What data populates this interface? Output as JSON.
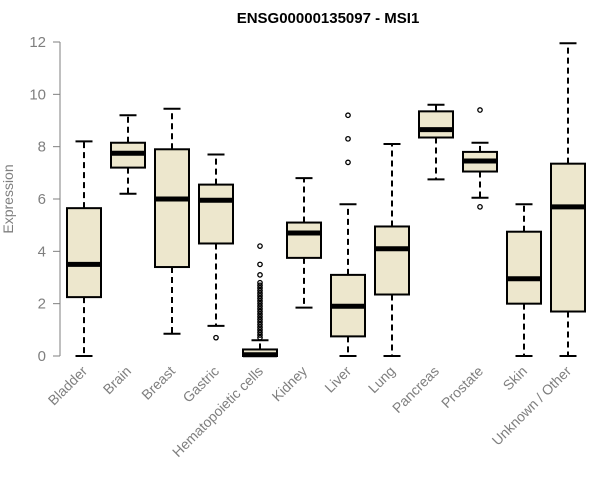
{
  "chart_data": {
    "type": "boxplot",
    "title": "ENSG00000135097 - MSI1",
    "ylabel": "Expression",
    "ylim": [
      0,
      12
    ],
    "yticks": [
      0,
      2,
      4,
      6,
      8,
      10,
      12
    ],
    "grid": false,
    "legend": "none",
    "box_fill": "#ede7cd",
    "box_stroke": "#000000",
    "categories": [
      "Bladder",
      "Brain",
      "Breast",
      "Gastric",
      "Hematopoietic cells",
      "Kidney",
      "Liver",
      "Lung",
      "Pancreas",
      "Prostate",
      "Skin",
      "Unknown / Other"
    ],
    "boxes": [
      {
        "category": "Bladder",
        "whisker_low": 0.0,
        "q1": 2.25,
        "median": 3.5,
        "q3": 5.65,
        "whisker_high": 8.2,
        "outliers": []
      },
      {
        "category": "Brain",
        "whisker_low": 6.2,
        "q1": 7.2,
        "median": 7.75,
        "q3": 8.15,
        "whisker_high": 9.2,
        "outliers": []
      },
      {
        "category": "Breast",
        "whisker_low": 0.85,
        "q1": 3.4,
        "median": 6.0,
        "q3": 7.9,
        "whisker_high": 9.45,
        "outliers": []
      },
      {
        "category": "Gastric",
        "whisker_low": 1.15,
        "q1": 4.3,
        "median": 5.95,
        "q3": 6.55,
        "whisker_high": 7.7,
        "outliers": [
          0.7
        ]
      },
      {
        "category": "Hematopoietic cells",
        "whisker_low": 0.0,
        "q1": 0.0,
        "median": 0.05,
        "q3": 0.25,
        "whisker_high": 0.6,
        "outliers": [
          0.7,
          0.8,
          0.9,
          1.0,
          1.1,
          1.2,
          1.3,
          1.4,
          1.5,
          1.6,
          1.7,
          1.8,
          1.9,
          2.0,
          2.1,
          2.2,
          2.3,
          2.4,
          2.5,
          2.6,
          2.7,
          2.8,
          3.1,
          3.5,
          4.2
        ]
      },
      {
        "category": "Kidney",
        "whisker_low": 1.85,
        "q1": 3.75,
        "median": 4.7,
        "q3": 5.1,
        "whisker_high": 6.8,
        "outliers": []
      },
      {
        "category": "Liver",
        "whisker_low": 0.0,
        "q1": 0.75,
        "median": 1.9,
        "q3": 3.1,
        "whisker_high": 5.8,
        "outliers": [
          7.4,
          8.3,
          9.2
        ]
      },
      {
        "category": "Lung",
        "whisker_low": 0.0,
        "q1": 2.35,
        "median": 4.1,
        "q3": 4.95,
        "whisker_high": 8.1,
        "outliers": []
      },
      {
        "category": "Pancreas",
        "whisker_low": 6.75,
        "q1": 8.35,
        "median": 8.65,
        "q3": 9.35,
        "whisker_high": 9.6,
        "outliers": []
      },
      {
        "category": "Prostate",
        "whisker_low": 6.05,
        "q1": 7.05,
        "median": 7.45,
        "q3": 7.8,
        "whisker_high": 8.15,
        "outliers": [
          5.7,
          9.4
        ]
      },
      {
        "category": "Skin",
        "whisker_low": 0.0,
        "q1": 2.0,
        "median": 2.95,
        "q3": 4.75,
        "whisker_high": 5.8,
        "outliers": []
      },
      {
        "category": "Unknown / Other",
        "whisker_low": 0.0,
        "q1": 1.7,
        "median": 5.7,
        "q3": 7.35,
        "whisker_high": 11.95,
        "outliers": []
      }
    ]
  }
}
